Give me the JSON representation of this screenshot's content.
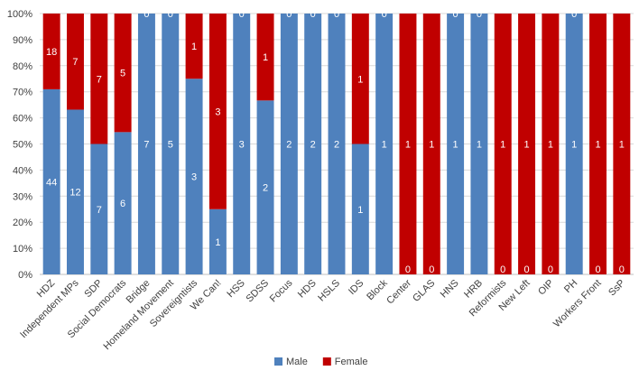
{
  "chart_data": {
    "type": "bar",
    "stacked": "percent",
    "categories": [
      "HDZ",
      "Independent MPs",
      "SDP",
      "Social Democrats",
      "Bridge",
      "Homeland Movement",
      "Sovereigntists",
      "We Can!",
      "HSS",
      "SDSS",
      "Focus",
      "HDS",
      "HSLS",
      "IDS",
      "Block",
      "Center",
      "GLAS",
      "HNS",
      "HRB",
      "Reformists",
      "New Left",
      "OIP",
      "PH",
      "Workers Front",
      "SsP"
    ],
    "series": [
      {
        "name": "Male",
        "color": "#4f81bd",
        "values": [
          44,
          12,
          7,
          6,
          7,
          5,
          3,
          1,
          3,
          2,
          2,
          2,
          2,
          1,
          1,
          0,
          0,
          1,
          1,
          0,
          0,
          0,
          1,
          0,
          0
        ]
      },
      {
        "name": "Female",
        "color": "#c00000",
        "values": [
          18,
          7,
          7,
          5,
          0,
          0,
          1,
          3,
          0,
          1,
          0,
          0,
          0,
          1,
          0,
          1,
          1,
          0,
          0,
          1,
          1,
          1,
          0,
          1,
          1
        ]
      }
    ],
    "y_ticks": [
      "0%",
      "10%",
      "20%",
      "30%",
      "40%",
      "50%",
      "60%",
      "70%",
      "80%",
      "90%",
      "100%"
    ],
    "ylim": [
      0,
      100
    ],
    "grid": true,
    "legend_position": "bottom"
  }
}
